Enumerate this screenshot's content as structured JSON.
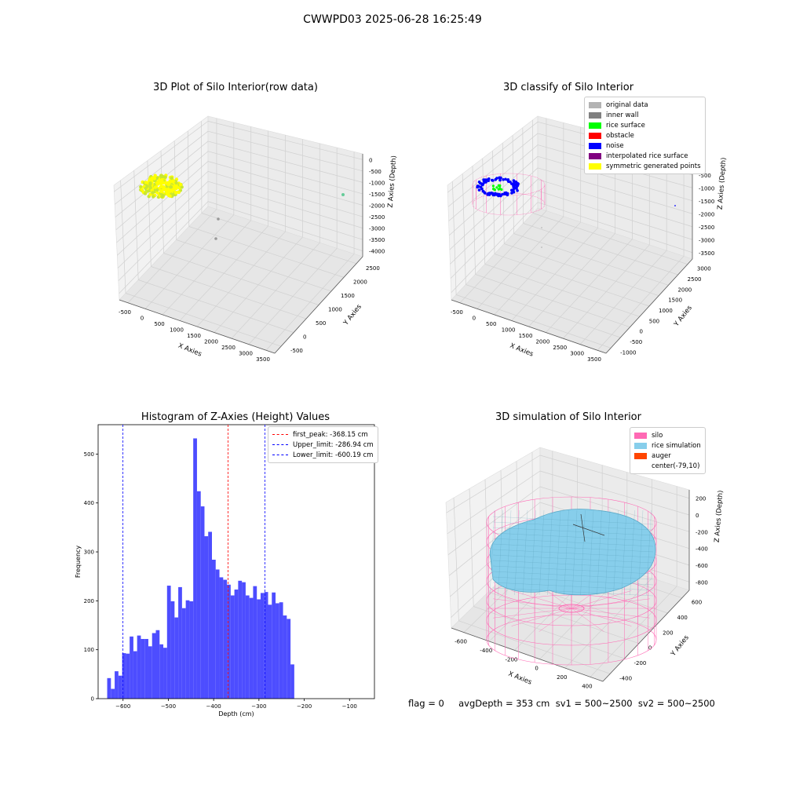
{
  "suptitle": "CWWPD03 2025-06-28 16:25:49",
  "footer": "flag = 0     avgDepth = 353 cm  sv1 = 500~2500  sv2 = 500~2500",
  "colors": {
    "raw_points": "#ffff00",
    "raw_points_alt": "#c8e632",
    "silo": "#ff69b4",
    "rice_simulation": "#87ceeb",
    "auger": "#ff4500",
    "hist": "#4d4dff",
    "first_peak": "#ff0000",
    "limits": "#0000ff"
  },
  "chart_data": [
    {
      "type": "scatter3d",
      "title": "3D Plot of Silo Interior(row data)",
      "xlabel": "X Axies",
      "ylabel": "Y Axies",
      "zlabel": "Z Axies (Depth)",
      "x_ticks": [
        "-500",
        "0",
        "500",
        "1000",
        "1500",
        "2000",
        "2500",
        "3000",
        "3500"
      ],
      "y_ticks": [
        "-500",
        "0",
        "500",
        "1000",
        "1500",
        "2000",
        "2500"
      ],
      "z_ticks": [
        "0",
        "-500",
        "-1000",
        "-1500",
        "-2000",
        "-2500",
        "-3000",
        "-3500",
        "-4000"
      ],
      "grid": true
    },
    {
      "type": "scatter3d",
      "title": "3D classify of Silo Interior",
      "xlabel": "X Axies",
      "ylabel": "Y Axies",
      "zlabel": "Z Axies (Depth)",
      "x_ticks": [
        "-500",
        "0",
        "500",
        "1000",
        "1500",
        "2000",
        "2500",
        "3000",
        "3500"
      ],
      "y_ticks": [
        "-1000",
        "-500",
        "0",
        "500",
        "1000",
        "1500",
        "2000",
        "2500",
        "3000"
      ],
      "z_ticks": [
        "0",
        "-500",
        "-1000",
        "-1500",
        "-2000",
        "-2500",
        "-3000",
        "-3500"
      ],
      "legend": [
        {
          "label": "original data",
          "color": "#b3b3b3"
        },
        {
          "label": "inner wall",
          "color": "#808080"
        },
        {
          "label": "rice surface",
          "color": "#00ff00"
        },
        {
          "label": "obstacle",
          "color": "#ff0000"
        },
        {
          "label": "noise",
          "color": "#0000ff"
        },
        {
          "label": "interpolated rice surface",
          "color": "#800080"
        },
        {
          "label": "symmetric generated points",
          "color": "#ffff00"
        }
      ],
      "legend_position": "top-right",
      "grid": true
    },
    {
      "type": "bar",
      "title": "Histogram of Z-Axies (Height) Values",
      "xlabel": "Depth (cm)",
      "ylabel": "Frequency",
      "xlim": [
        -655,
        -45
      ],
      "ylim": [
        0,
        560
      ],
      "x_ticks": [
        -600,
        -500,
        -400,
        -300,
        -200,
        -100
      ],
      "y_ticks": [
        0,
        100,
        200,
        300,
        400,
        500
      ],
      "bin_start": -635.0,
      "bin_width": 8.26,
      "values": [
        42,
        20,
        56,
        47,
        93,
        92,
        127,
        97,
        129,
        122,
        122,
        107,
        134,
        140,
        111,
        104,
        231,
        199,
        166,
        228,
        185,
        201,
        199,
        532,
        424,
        393,
        332,
        341,
        284,
        264,
        248,
        243,
        233,
        211,
        223,
        241,
        238,
        211,
        206,
        230,
        203,
        216,
        218,
        192,
        217,
        195,
        197,
        170,
        163,
        70
      ],
      "reference_lines": [
        {
          "label": "first_peak: -368.15 cm",
          "x": -368.15,
          "color": "#ff0000"
        },
        {
          "label": "Upper_limit: -286.94 cm",
          "x": -286.94,
          "color": "#0000ff"
        },
        {
          "label": "Lower_limit: -600.19 cm",
          "x": -600.19,
          "color": "#0000ff"
        }
      ],
      "legend_position": "top-right"
    },
    {
      "type": "surface3d",
      "title": "3D simulation of Silo Interior",
      "xlabel": "X Axies",
      "ylabel": "Y Axies",
      "zlabel": "Z Axies (Depth)",
      "x_ticks": [
        "-600",
        "-400",
        "-200",
        "0",
        "200",
        "400"
      ],
      "y_ticks": [
        "-400",
        "-200",
        "0",
        "200",
        "400",
        "600"
      ],
      "z_ticks": [
        "200",
        "0",
        "-200",
        "-400",
        "-600",
        "-800"
      ],
      "legend": [
        {
          "label": "silo",
          "color": "#ff69b4"
        },
        {
          "label": "rice simulation",
          "color": "#87ceeb"
        },
        {
          "label": "auger",
          "color": "#ff4500"
        },
        {
          "label": "center(-79,10)",
          "color": "#ffffff"
        }
      ],
      "legend_position": "top-right",
      "grid": true
    }
  ]
}
